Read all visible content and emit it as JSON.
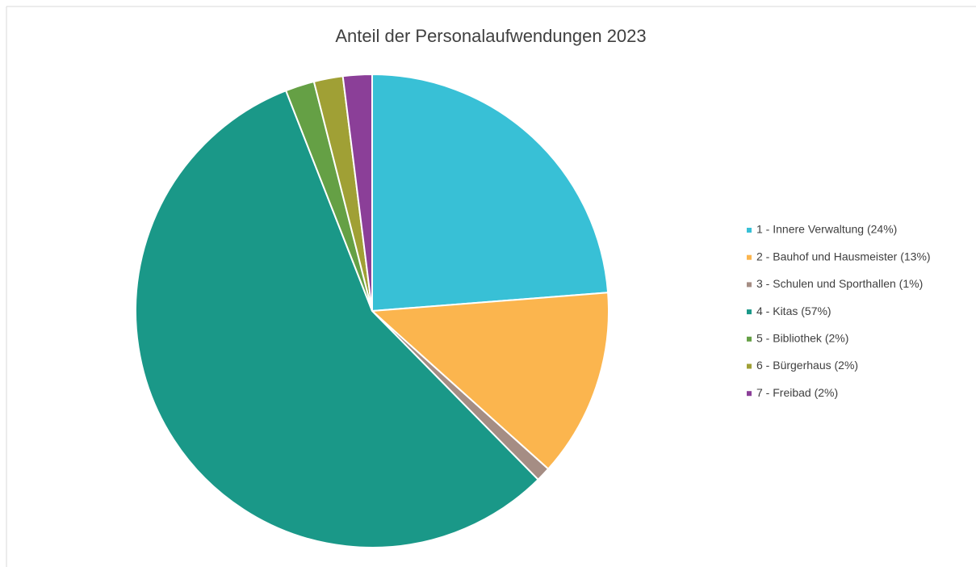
{
  "chart_data": {
    "type": "pie",
    "title": "Anteil der Personalaufwendungen 2023",
    "categories": [
      "1 - Innere Verwaltung (24%)",
      "2 - Bauhof und Hausmeister (13%)",
      "3 - Schulen und Sporthallen (1%)",
      "4 - Kitas (57%)",
      "5 - Bibliothek (2%)",
      "6 - Bürgerhaus (2%)",
      "7 - Freibad (2%)"
    ],
    "values": [
      24,
      13,
      1,
      57,
      2,
      2,
      2
    ],
    "colors": [
      "#38c0d6",
      "#fbb54e",
      "#a58d84",
      "#1a9888",
      "#65a045",
      "#a0a035",
      "#8b3f98"
    ],
    "legend": "right"
  }
}
